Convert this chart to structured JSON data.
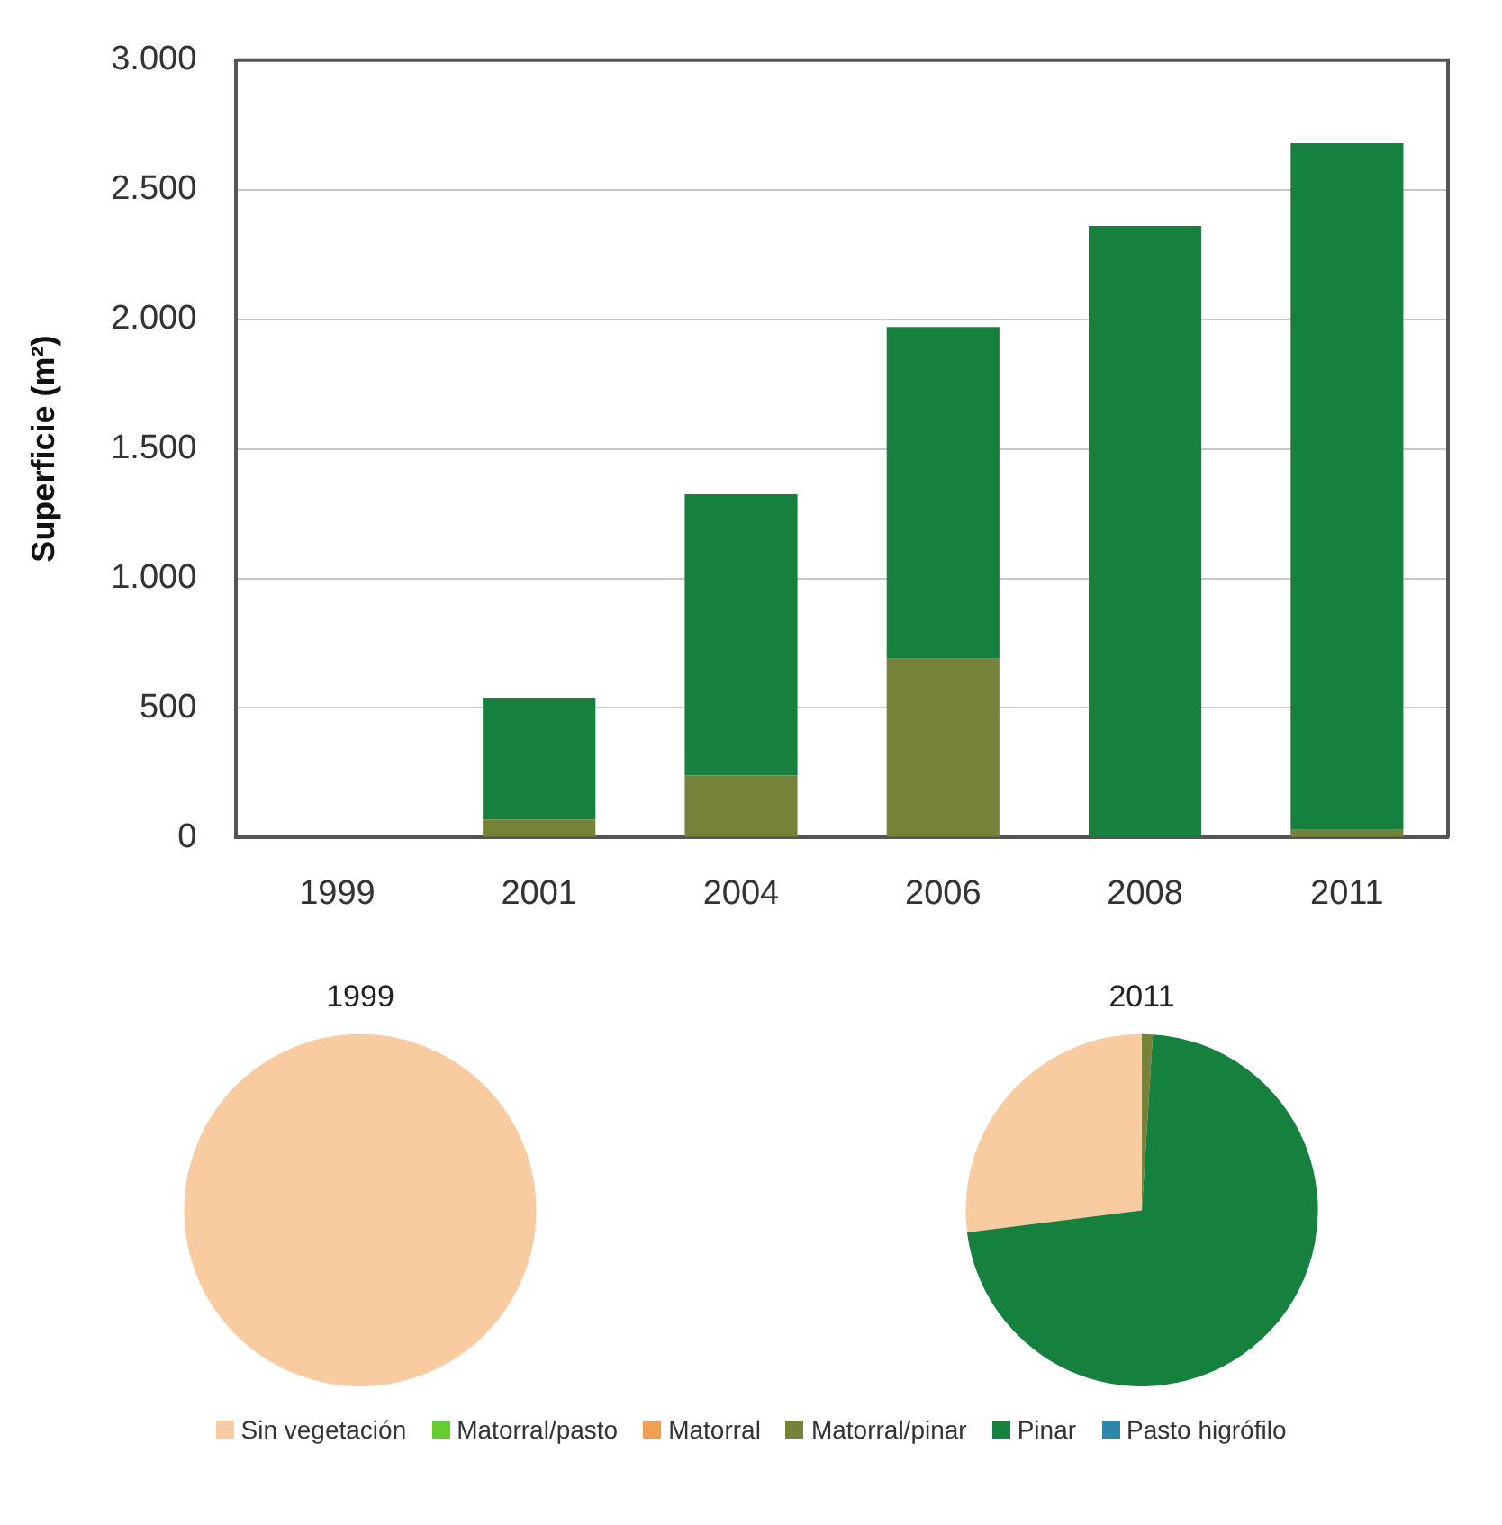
{
  "chart_data": [
    {
      "type": "bar",
      "stacked": true,
      "ylabel": "Superficie (m²)",
      "categories": [
        "1999",
        "2001",
        "2004",
        "2006",
        "2008",
        "2011"
      ],
      "series": [
        {
          "name": "Sin vegetación",
          "color": "#f8cba0",
          "values": [
            0,
            0,
            0,
            0,
            0,
            0
          ]
        },
        {
          "name": "Matorral/pasto",
          "color": "#66cc33",
          "values": [
            0,
            0,
            0,
            0,
            0,
            0
          ]
        },
        {
          "name": "Matorral",
          "color": "#f0a050",
          "values": [
            0,
            0,
            0,
            0,
            0,
            0
          ]
        },
        {
          "name": "Matorral/pinar",
          "color": "#76813a",
          "values": [
            0,
            70,
            240,
            690,
            0,
            30
          ]
        },
        {
          "name": "Pinar",
          "color": "#16803f",
          "values": [
            0,
            470,
            1085,
            1280,
            2360,
            2650
          ]
        },
        {
          "name": "Pasto higrófilo",
          "color": "#2e86a8",
          "values": [
            0,
            0,
            0,
            0,
            0,
            0
          ]
        }
      ],
      "ylim": [
        0,
        3000
      ],
      "yticks": [
        {
          "value": 0,
          "label": "0"
        },
        {
          "value": 500,
          "label": "500"
        },
        {
          "value": 1000,
          "label": "1.000"
        },
        {
          "value": 1500,
          "label": "1.500"
        },
        {
          "value": 2000,
          "label": "2.000"
        },
        {
          "value": 2500,
          "label": "2.500"
        },
        {
          "value": 3000,
          "label": "3.000"
        }
      ],
      "grid": "y",
      "legend": "bottom"
    },
    {
      "type": "pie",
      "title": "1999",
      "categories": [
        null,
        null,
        null,
        null,
        null,
        null
      ],
      "values": [
        100,
        0,
        0,
        0,
        0,
        0
      ],
      "colors": [
        "#f8cba0",
        "#66cc33",
        "#f0a050",
        "#76813a",
        "#16803f",
        "#2e86a8"
      ]
    },
    {
      "type": "pie",
      "title": "2011",
      "categories": [
        null,
        null,
        null,
        null,
        null,
        null
      ],
      "values": [
        27,
        0,
        0,
        1,
        72,
        0
      ],
      "colors": [
        "#f8cba0",
        "#66cc33",
        "#f0a050",
        "#76813a",
        "#16803f",
        "#2e86a8"
      ]
    }
  ]
}
